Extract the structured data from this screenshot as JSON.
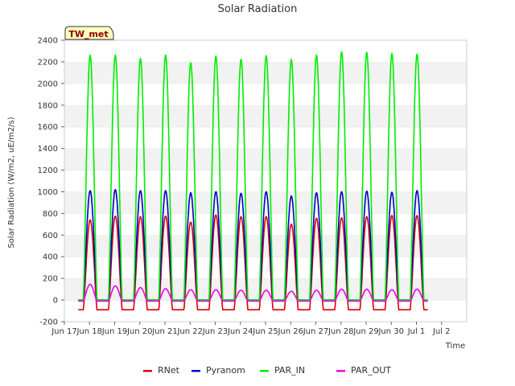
{
  "chart_data": {
    "type": "line",
    "title": "Solar Radiation",
    "xlabel": "Time",
    "ylabel": "Solar Radiation (W/m2, uE/m2/s)",
    "ylim": [
      -200,
      2400
    ],
    "yticks": [
      -200,
      0,
      200,
      400,
      600,
      800,
      1000,
      1200,
      1400,
      1600,
      1800,
      2000,
      2200,
      2400
    ],
    "xlim": [
      0,
      16
    ],
    "xticks": [
      {
        "x": 0,
        "label": "Jun 17"
      },
      {
        "x": 1,
        "label": "Jun 18"
      },
      {
        "x": 2,
        "label": "Jun 19"
      },
      {
        "x": 3,
        "label": "Jun 20"
      },
      {
        "x": 4,
        "label": "Jun 21"
      },
      {
        "x": 5,
        "label": "Jun 22"
      },
      {
        "x": 6,
        "label": "Jun 23"
      },
      {
        "x": 7,
        "label": "Jun 24"
      },
      {
        "x": 8,
        "label": "Jun 25"
      },
      {
        "x": 9,
        "label": "Jun 26"
      },
      {
        "x": 10,
        "label": "Jun 27"
      },
      {
        "x": 11,
        "label": "Jun 28"
      },
      {
        "x": 12,
        "label": "Jun 29"
      },
      {
        "x": 13,
        "label": "Jun 30"
      },
      {
        "x": 14,
        "label": "Jul 1"
      },
      {
        "x": 15,
        "label": "Jul 2"
      }
    ],
    "grid": "horizontal bands",
    "legend_position": "bottom",
    "badge": "TW_met",
    "data_start_day": 0.55,
    "data_end_day": 14.45,
    "series": [
      {
        "name": "RNet",
        "color": "#dd0000",
        "night_value": -90,
        "daily_peaks": [
          740,
          775,
          770,
          775,
          720,
          785,
          770,
          770,
          700,
          755,
          760,
          770,
          780,
          780
        ]
      },
      {
        "name": "Pyranom",
        "color": "#0000cc",
        "night_value": 0,
        "daily_peaks": [
          1010,
          1020,
          1010,
          1010,
          990,
          1000,
          985,
          1000,
          960,
          990,
          1000,
          1005,
          995,
          1010
        ]
      },
      {
        "name": "PAR_IN",
        "color": "#00ee00",
        "night_value": 0,
        "daily_peaks": [
          2260,
          2260,
          2230,
          2260,
          2190,
          2250,
          2220,
          2255,
          2220,
          2260,
          2290,
          2285,
          2275,
          2270
        ]
      },
      {
        "name": "PAR_OUT",
        "color": "#ee00ee",
        "night_value": -10,
        "daily_peaks": [
          145,
          130,
          115,
          105,
          95,
          95,
          90,
          90,
          80,
          90,
          100,
          100,
          95,
          100
        ]
      }
    ]
  }
}
